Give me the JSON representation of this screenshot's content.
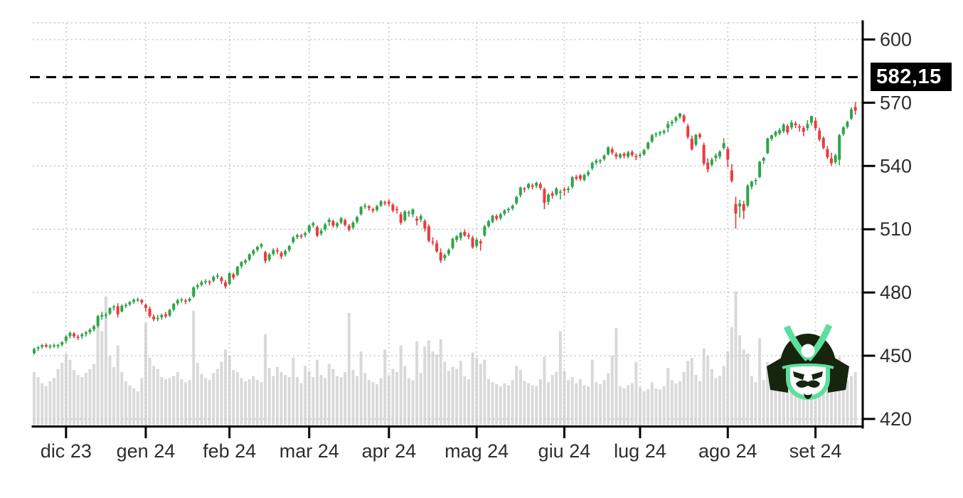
{
  "chart_data": {
    "type": "candlestick",
    "title": "",
    "xlabel": "",
    "ylabel": "",
    "grid": true,
    "legend": "none",
    "y_axis_side": "right",
    "y_ticks": [
      600,
      570,
      540,
      510,
      480,
      450,
      420
    ],
    "ylim": [
      415,
      608
    ],
    "x_tick_labels": [
      "dic 23",
      "gen 24",
      "feb 24",
      "mar 24",
      "apr 24",
      "mag 24",
      "giu 24",
      "lug 24",
      "ago 24",
      "set 24"
    ],
    "month_start_indices": [
      8,
      28,
      49,
      69,
      89,
      111,
      133,
      152,
      174,
      196
    ],
    "price_line": {
      "value": 582.15,
      "label": "582,15"
    },
    "colors": {
      "up": "#2fa44a",
      "down": "#ea3b3e",
      "volume": "#d9d9d9",
      "grid": "#c9c9c9",
      "axis": "#000000",
      "tick_text": "#2e2e2e",
      "price_line": "#000000",
      "price_label_bg": "#000000",
      "price_label_fg": "#ffffff",
      "logo_dark": "#17240e",
      "logo_mint": "#5cdf9e"
    },
    "candle_fields": [
      "open",
      "high",
      "low",
      "close",
      "volume_millions_est"
    ],
    "candles": [
      [
        451.2,
        453.8,
        450.5,
        453.2,
        52
      ],
      [
        453.4,
        454.6,
        452.2,
        454.0,
        47
      ],
      [
        454.2,
        455.6,
        453.3,
        455.0,
        41
      ],
      [
        455.1,
        455.9,
        453.8,
        454.3,
        38
      ],
      [
        454.4,
        455.5,
        453.2,
        454.6,
        43
      ],
      [
        454.7,
        455.8,
        453.8,
        454.9,
        46
      ],
      [
        454.8,
        455.7,
        453.5,
        455.0,
        55
      ],
      [
        455.2,
        456.9,
        454.4,
        456.4,
        61
      ],
      [
        457.1,
        459.6,
        456.0,
        459.1,
        70
      ],
      [
        459.3,
        461.5,
        458.2,
        460.8,
        64
      ],
      [
        460.5,
        461.2,
        458.3,
        459.2,
        54
      ],
      [
        459.0,
        460.0,
        457.4,
        458.9,
        49
      ],
      [
        459.2,
        460.9,
        458.0,
        460.1,
        47
      ],
      [
        460.3,
        461.8,
        459.1,
        461.0,
        51
      ],
      [
        461.2,
        463.0,
        460.2,
        462.4,
        55
      ],
      [
        462.5,
        464.7,
        461.5,
        464.0,
        60
      ],
      [
        464.2,
        469.4,
        463.4,
        468.8,
        97
      ],
      [
        468.5,
        470.9,
        467.0,
        469.3,
        92
      ],
      [
        469.4,
        470.4,
        467.8,
        469.5,
        126
      ],
      [
        470.0,
        473.0,
        469.2,
        472.6,
        68
      ],
      [
        472.8,
        474.1,
        471.5,
        473.3,
        57
      ],
      [
        473.5,
        474.9,
        468.1,
        469.6,
        78
      ],
      [
        471.0,
        474.4,
        470.5,
        473.7,
        52
      ],
      [
        473.8,
        475.0,
        472.6,
        474.1,
        43
      ],
      [
        474.3,
        476.0,
        473.5,
        475.4,
        39
      ],
      [
        475.5,
        477.2,
        474.6,
        476.5,
        36
      ],
      [
        476.6,
        477.6,
        475.5,
        476.7,
        33
      ],
      [
        476.4,
        477.0,
        474.2,
        475.3,
        46
      ],
      [
        474.1,
        474.8,
        470.8,
        472.7,
        100
      ],
      [
        472.3,
        473.4,
        468.0,
        468.8,
        66
      ],
      [
        468.5,
        469.6,
        466.4,
        467.3,
        58
      ],
      [
        467.6,
        469.4,
        466.3,
        467.9,
        55
      ],
      [
        468.2,
        470.0,
        467.1,
        469.3,
        47
      ],
      [
        469.6,
        470.8,
        467.8,
        468.7,
        45
      ],
      [
        469.0,
        472.3,
        468.3,
        471.7,
        46
      ],
      [
        471.9,
        475.0,
        471.0,
        474.6,
        48
      ],
      [
        474.8,
        477.1,
        473.8,
        476.3,
        52
      ],
      [
        476.4,
        477.5,
        475.1,
        476.7,
        45
      ],
      [
        476.2,
        477.0,
        474.5,
        475.9,
        42
      ],
      [
        476.1,
        477.8,
        475.3,
        477.0,
        44
      ],
      [
        478.1,
        482.9,
        477.5,
        482.4,
        112
      ],
      [
        482.6,
        484.2,
        481.5,
        483.4,
        61
      ],
      [
        483.6,
        485.8,
        482.8,
        484.9,
        50
      ],
      [
        485.0,
        486.3,
        483.9,
        485.4,
        46
      ],
      [
        485.2,
        486.0,
        483.5,
        485.1,
        44
      ],
      [
        485.6,
        488.0,
        484.8,
        487.4,
        51
      ],
      [
        487.6,
        489.1,
        486.4,
        488.0,
        55
      ],
      [
        487.0,
        487.8,
        484.0,
        485.4,
        62
      ],
      [
        484.8,
        486.0,
        481.8,
        482.9,
        74
      ],
      [
        484.1,
        489.6,
        483.4,
        489.2,
        68
      ],
      [
        488.6,
        489.4,
        486.0,
        487.0,
        54
      ],
      [
        488.4,
        492.6,
        487.7,
        492.2,
        52
      ],
      [
        492.4,
        494.9,
        491.4,
        494.4,
        46
      ],
      [
        494.2,
        495.9,
        493.2,
        495.2,
        43
      ],
      [
        495.6,
        498.6,
        494.8,
        498.1,
        45
      ],
      [
        498.3,
        500.6,
        497.4,
        500.0,
        48
      ],
      [
        500.2,
        502.2,
        499.2,
        501.6,
        44
      ],
      [
        501.8,
        503.5,
        500.8,
        502.9,
        42
      ],
      [
        499.1,
        499.8,
        493.8,
        495.0,
        89
      ],
      [
        495.5,
        498.8,
        494.6,
        498.0,
        56
      ],
      [
        498.3,
        501.0,
        497.4,
        500.1,
        48
      ],
      [
        500.0,
        501.2,
        498.2,
        499.5,
        57
      ],
      [
        498.8,
        499.6,
        495.8,
        497.0,
        52
      ],
      [
        498.0,
        500.4,
        497.1,
        499.7,
        49
      ],
      [
        500.1,
        502.6,
        499.2,
        502.0,
        47
      ],
      [
        503.9,
        506.9,
        503.1,
        506.1,
        66
      ],
      [
        506.3,
        507.9,
        505.3,
        507.2,
        47
      ],
      [
        507.0,
        507.8,
        505.5,
        506.9,
        41
      ],
      [
        507.2,
        508.9,
        506.1,
        508.1,
        58
      ],
      [
        508.9,
        512.2,
        508.0,
        511.7,
        53
      ],
      [
        511.9,
        513.6,
        510.8,
        512.9,
        47
      ],
      [
        511.0,
        511.8,
        506.2,
        507.0,
        64
      ],
      [
        507.9,
        510.4,
        506.9,
        509.3,
        49
      ],
      [
        510.0,
        513.0,
        509.1,
        512.3,
        46
      ],
      [
        513.4,
        515.4,
        511.5,
        514.5,
        60
      ],
      [
        513.9,
        514.6,
        510.8,
        511.7,
        55
      ],
      [
        511.5,
        513.5,
        510.6,
        512.8,
        48
      ],
      [
        513.2,
        515.9,
        512.4,
        515.2,
        47
      ],
      [
        514.3,
        515.0,
        511.3,
        512.0,
        52
      ],
      [
        511.6,
        512.5,
        509.0,
        509.8,
        110
      ],
      [
        510.8,
        513.9,
        510.0,
        513.1,
        54
      ],
      [
        513.6,
        516.4,
        512.7,
        515.7,
        48
      ],
      [
        517.1,
        521.1,
        516.4,
        520.5,
        72
      ],
      [
        520.7,
        522.3,
        519.6,
        521.2,
        51
      ],
      [
        520.8,
        521.5,
        518.8,
        520.0,
        44
      ],
      [
        519.5,
        520.3,
        517.7,
        518.8,
        42
      ],
      [
        519.2,
        521.6,
        518.3,
        520.9,
        40
      ],
      [
        521.2,
        523.9,
        520.5,
        523.2,
        46
      ],
      [
        522.8,
        523.6,
        521.3,
        522.4,
        74
      ],
      [
        523.1,
        524.1,
        520.9,
        522.2,
        49
      ],
      [
        521.6,
        522.4,
        518.0,
        518.8,
        55
      ],
      [
        519.6,
        521.0,
        517.4,
        519.4,
        52
      ],
      [
        517.1,
        518.2,
        512.1,
        513.1,
        78
      ],
      [
        514.2,
        519.0,
        513.5,
        518.4,
        58
      ],
      [
        517.8,
        518.9,
        515.9,
        518.0,
        46
      ],
      [
        517.1,
        519.9,
        515.7,
        519.3,
        44
      ],
      [
        515.0,
        516.2,
        511.8,
        514.1,
        82
      ],
      [
        514.6,
        517.2,
        513.4,
        516.2,
        51
      ],
      [
        513.9,
        514.8,
        508.9,
        510.3,
        77
      ],
      [
        511.3,
        512.3,
        503.7,
        504.5,
        83
      ],
      [
        504.1,
        506.2,
        502.4,
        503.9,
        72
      ],
      [
        503.4,
        504.8,
        498.8,
        499.5,
        69
      ],
      [
        499.0,
        500.9,
        494.0,
        495.2,
        84
      ],
      [
        496.3,
        498.5,
        495.0,
        497.7,
        62
      ],
      [
        498.3,
        500.9,
        497.3,
        500.1,
        53
      ],
      [
        501.1,
        506.1,
        500.3,
        505.4,
        57
      ],
      [
        505.0,
        507.2,
        503.9,
        506.6,
        55
      ],
      [
        505.8,
        508.9,
        504.6,
        508.3,
        63
      ],
      [
        508.7,
        509.9,
        506.4,
        507.0,
        48
      ],
      [
        507.2,
        508.3,
        505.2,
        506.5,
        45
      ],
      [
        506.0,
        507.0,
        500.7,
        501.4,
        71
      ],
      [
        502.1,
        505.9,
        501.2,
        505.0,
        66
      ],
      [
        504.2,
        505.3,
        499.9,
        503.3,
        60
      ],
      [
        507.1,
        512.0,
        506.5,
        511.3,
        64
      ],
      [
        511.5,
        514.4,
        510.7,
        513.8,
        45
      ],
      [
        513.5,
        516.9,
        512.8,
        516.4,
        42
      ],
      [
        516.2,
        517.1,
        514.1,
        515.0,
        40
      ],
      [
        515.3,
        517.8,
        514.4,
        517.1,
        38
      ],
      [
        517.3,
        519.5,
        516.4,
        518.9,
        41
      ],
      [
        519.0,
        520.4,
        517.8,
        519.6,
        39
      ],
      [
        519.8,
        521.8,
        518.9,
        521.1,
        44
      ],
      [
        522.3,
        525.9,
        521.6,
        525.3,
        58
      ],
      [
        526.1,
        530.2,
        525.1,
        529.8,
        54
      ],
      [
        529.4,
        530.0,
        527.5,
        529.1,
        43
      ],
      [
        529.6,
        532.0,
        528.8,
        531.4,
        41
      ],
      [
        530.8,
        531.7,
        528.9,
        530.1,
        39
      ],
      [
        530.5,
        532.6,
        529.5,
        532.0,
        38
      ],
      [
        531.4,
        532.3,
        528.6,
        529.6,
        45
      ],
      [
        529.0,
        529.8,
        519.5,
        522.5,
        67
      ],
      [
        523.0,
        527.0,
        521.5,
        526.4,
        42
      ],
      [
        527.0,
        528.0,
        524.5,
        525.9,
        49
      ],
      [
        526.5,
        530.0,
        525.8,
        529.3,
        52
      ],
      [
        527.5,
        528.8,
        524.1,
        527.8,
        92
      ],
      [
        529.0,
        529.9,
        525.8,
        528.4,
        53
      ],
      [
        528.7,
        530.4,
        527.2,
        529.3,
        44
      ],
      [
        530.1,
        535.3,
        529.3,
        534.7,
        47
      ],
      [
        534.8,
        535.8,
        533.1,
        534.0,
        41
      ],
      [
        535.5,
        536.2,
        532.9,
        533.9,
        45
      ],
      [
        533.4,
        536.4,
        532.7,
        535.7,
        39
      ],
      [
        535.9,
        538.0,
        535.0,
        537.1,
        38
      ],
      [
        538.9,
        542.1,
        538.0,
        541.4,
        64
      ],
      [
        541.6,
        543.4,
        540.6,
        542.5,
        42
      ],
      [
        542.2,
        543.3,
        541.0,
        542.7,
        40
      ],
      [
        543.3,
        545.6,
        542.4,
        544.9,
        44
      ],
      [
        545.6,
        549.4,
        544.9,
        548.8,
        51
      ],
      [
        547.9,
        549.0,
        545.3,
        546.3,
        68
      ],
      [
        545.6,
        546.6,
        543.2,
        544.5,
        95
      ],
      [
        544.1,
        546.2,
        543.3,
        545.5,
        38
      ],
      [
        545.8,
        546.6,
        543.6,
        544.8,
        36
      ],
      [
        544.4,
        547.2,
        543.6,
        546.4,
        39
      ],
      [
        546.6,
        547.5,
        544.3,
        545.2,
        41
      ],
      [
        544.6,
        545.8,
        542.8,
        544.2,
        62
      ],
      [
        545.1,
        546.3,
        543.7,
        545.3,
        37
      ],
      [
        545.5,
        548.2,
        544.8,
        547.5,
        33
      ],
      [
        548.3,
        551.6,
        547.6,
        551.0,
        35
      ],
      [
        551.6,
        555.2,
        550.8,
        554.6,
        42
      ],
      [
        554.8,
        556.0,
        553.6,
        555.3,
        36
      ],
      [
        555.4,
        556.7,
        554.2,
        556.0,
        35
      ],
      [
        555.8,
        557.4,
        554.9,
        556.6,
        38
      ],
      [
        558.1,
        561.3,
        555.9,
        559.9,
        56
      ],
      [
        560.2,
        561.9,
        558.9,
        560.9,
        44
      ],
      [
        561.5,
        563.8,
        560.5,
        563.0,
        41
      ],
      [
        563.3,
        565.2,
        562.3,
        564.9,
        43
      ],
      [
        563.9,
        564.6,
        560.3,
        561.2,
        52
      ],
      [
        558.9,
        560.0,
        552.8,
        553.8,
        63
      ],
      [
        552.9,
        554.4,
        547.3,
        548.0,
        66
      ],
      [
        550.1,
        555.3,
        549.3,
        554.7,
        49
      ],
      [
        555.0,
        555.8,
        552.8,
        553.7,
        43
      ],
      [
        550.0,
        551.1,
        540.3,
        541.2,
        75
      ],
      [
        541.6,
        543.6,
        536.9,
        538.4,
        68
      ],
      [
        540.6,
        544.0,
        539.6,
        543.0,
        55
      ],
      [
        543.8,
        546.0,
        542.1,
        545.0,
        46
      ],
      [
        544.5,
        547.5,
        543.3,
        546.7,
        48
      ],
      [
        548.5,
        553.1,
        547.7,
        550.8,
        58
      ],
      [
        548.1,
        549.3,
        539.4,
        543.0,
        72
      ],
      [
        537.9,
        540.9,
        532.1,
        532.9,
        96
      ],
      [
        522.0,
        525.4,
        510.3,
        517.4,
        131
      ],
      [
        520.8,
        524.0,
        515.5,
        522.2,
        88
      ],
      [
        521.9,
        523.4,
        514.8,
        518.7,
        74
      ],
      [
        521.3,
        531.3,
        520.4,
        530.7,
        70
      ],
      [
        530.2,
        533.0,
        529.0,
        532.6,
        48
      ],
      [
        532.9,
        534.2,
        531.0,
        533.3,
        42
      ],
      [
        534.8,
        542.4,
        534.2,
        542.0,
        85
      ],
      [
        542.5,
        544.4,
        540.9,
        543.8,
        44
      ],
      [
        546.1,
        553.4,
        545.6,
        553.1,
        62
      ],
      [
        552.9,
        554.8,
        551.9,
        554.6,
        41
      ],
      [
        554.5,
        556.8,
        553.6,
        556.2,
        37
      ],
      [
        555.4,
        558.0,
        554.6,
        557.0,
        35
      ],
      [
        556.5,
        560.3,
        555.7,
        559.6,
        39
      ],
      [
        559.0,
        559.9,
        554.8,
        556.0,
        42
      ],
      [
        558.3,
        561.7,
        557.2,
        560.6,
        47
      ],
      [
        560.2,
        561.2,
        558.0,
        559.3,
        38
      ],
      [
        558.8,
        559.9,
        556.3,
        558.3,
        40
      ],
      [
        558.0,
        559.0,
        554.1,
        556.2,
        45
      ],
      [
        557.9,
        561.8,
        556.7,
        559.8,
        44
      ],
      [
        560.6,
        563.8,
        559.2,
        563.7,
        63
      ],
      [
        561.5,
        562.9,
        556.8,
        558.0,
        54
      ],
      [
        556.8,
        558.2,
        551.7,
        552.6,
        61
      ],
      [
        553.2,
        554.0,
        547.8,
        548.6,
        57
      ],
      [
        548.0,
        549.5,
        543.3,
        544.1,
        66
      ],
      [
        543.6,
        546.3,
        540.1,
        541.3,
        72
      ],
      [
        541.8,
        545.9,
        540.8,
        545.0,
        49
      ],
      [
        543.0,
        555.2,
        540.4,
        554.6,
        67
      ],
      [
        555.1,
        558.9,
        554.2,
        558.3,
        46
      ],
      [
        558.6,
        561.5,
        557.7,
        560.9,
        44
      ],
      [
        562.5,
        567.9,
        561.8,
        566.8,
        48
      ],
      [
        568.0,
        570.4,
        564.3,
        566.2,
        52
      ]
    ]
  }
}
